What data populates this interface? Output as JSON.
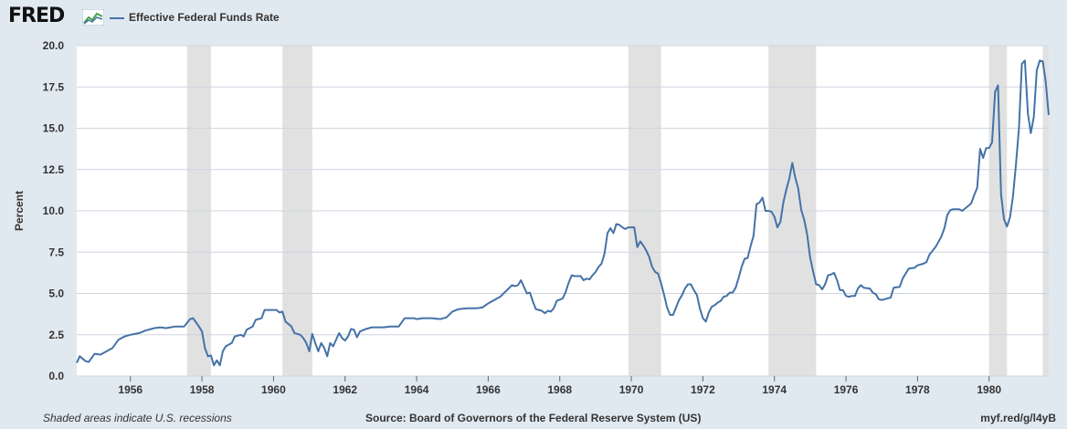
{
  "header": {
    "logo_text": "FRED",
    "logo_icon": "fred-chart-icon",
    "legend_label": "Effective Federal Funds Rate"
  },
  "colors": {
    "background": "#e1e9f0",
    "plot_background": "#ffffff",
    "series": "#4572a7",
    "recession": "#e1e1e1",
    "grid": "#ccd6e0"
  },
  "footer": {
    "note": "Shaded areas indicate U.S. recessions",
    "source": "Source: Board of Governors of the Federal Reserve System (US)",
    "link": "myf.red/g/l4yB"
  },
  "chart_data": {
    "type": "line",
    "title": "",
    "xlabel": "",
    "ylabel": "Percent",
    "xlim": [
      "1954-07",
      "1981-09"
    ],
    "ylim": [
      0,
      20
    ],
    "yticks": [
      "0.0",
      "2.5",
      "5.0",
      "7.5",
      "10.0",
      "12.5",
      "15.0",
      "17.5",
      "20.0"
    ],
    "xticks": [
      "1956",
      "1958",
      "1960",
      "1962",
      "1964",
      "1966",
      "1968",
      "1970",
      "1972",
      "1974",
      "1976",
      "1978",
      "1980"
    ],
    "grid": true,
    "legend_position": "top-left",
    "recessions": [
      [
        "1957-08",
        "1958-04"
      ],
      [
        "1960-04",
        "1961-02"
      ],
      [
        "1969-12",
        "1970-11"
      ],
      [
        "1973-11",
        "1975-03"
      ],
      [
        "1980-01",
        "1980-07"
      ],
      [
        "1981-07",
        "1981-09"
      ]
    ],
    "series": [
      {
        "name": "Effective Federal Funds Rate",
        "points": [
          [
            "1954-07",
            0.8
          ],
          [
            "1954-08",
            1.2
          ],
          [
            "1954-10",
            0.9
          ],
          [
            "1954-11",
            0.85
          ],
          [
            "1955-01",
            1.35
          ],
          [
            "1955-03",
            1.3
          ],
          [
            "1955-05",
            1.5
          ],
          [
            "1955-07",
            1.7
          ],
          [
            "1955-09",
            2.2
          ],
          [
            "1955-11",
            2.4
          ],
          [
            "1956-01",
            2.5
          ],
          [
            "1956-04",
            2.6
          ],
          [
            "1956-06",
            2.75
          ],
          [
            "1956-09",
            2.9
          ],
          [
            "1956-11",
            2.95
          ],
          [
            "1957-01",
            2.9
          ],
          [
            "1957-04",
            3.0
          ],
          [
            "1957-07",
            3.0
          ],
          [
            "1957-09",
            3.45
          ],
          [
            "1957-10",
            3.5
          ],
          [
            "1957-12",
            3.0
          ],
          [
            "1958-01",
            2.7
          ],
          [
            "1958-02",
            1.7
          ],
          [
            "1958-03",
            1.2
          ],
          [
            "1958-04",
            1.25
          ],
          [
            "1958-05",
            0.65
          ],
          [
            "1958-06",
            0.95
          ],
          [
            "1958-07",
            0.65
          ],
          [
            "1958-08",
            1.5
          ],
          [
            "1958-09",
            1.8
          ],
          [
            "1958-11",
            2.0
          ],
          [
            "1958-12",
            2.4
          ],
          [
            "1959-02",
            2.5
          ],
          [
            "1959-03",
            2.4
          ],
          [
            "1959-04",
            2.8
          ],
          [
            "1959-06",
            3.0
          ],
          [
            "1959-07",
            3.4
          ],
          [
            "1959-09",
            3.5
          ],
          [
            "1959-10",
            4.0
          ],
          [
            "1959-12",
            4.0
          ],
          [
            "1960-02",
            4.0
          ],
          [
            "1960-03",
            3.85
          ],
          [
            "1960-04",
            3.9
          ],
          [
            "1960-05",
            3.3
          ],
          [
            "1960-07",
            3.0
          ],
          [
            "1960-08",
            2.6
          ],
          [
            "1960-10",
            2.5
          ],
          [
            "1960-11",
            2.3
          ],
          [
            "1960-12",
            2.0
          ],
          [
            "1961-01",
            1.5
          ],
          [
            "1961-02",
            2.55
          ],
          [
            "1961-03",
            2.0
          ],
          [
            "1961-04",
            1.5
          ],
          [
            "1961-05",
            2.0
          ],
          [
            "1961-06",
            1.7
          ],
          [
            "1961-07",
            1.2
          ],
          [
            "1961-08",
            2.0
          ],
          [
            "1961-09",
            1.8
          ],
          [
            "1961-11",
            2.6
          ],
          [
            "1961-12",
            2.3
          ],
          [
            "1962-01",
            2.15
          ],
          [
            "1962-02",
            2.4
          ],
          [
            "1962-03",
            2.85
          ],
          [
            "1962-04",
            2.8
          ],
          [
            "1962-05",
            2.35
          ],
          [
            "1962-06",
            2.7
          ],
          [
            "1962-08",
            2.85
          ],
          [
            "1962-10",
            2.95
          ],
          [
            "1963-02",
            2.95
          ],
          [
            "1963-04",
            3.0
          ],
          [
            "1963-06",
            3.0
          ],
          [
            "1963-07",
            3.0
          ],
          [
            "1963-09",
            3.5
          ],
          [
            "1963-12",
            3.5
          ],
          [
            "1964-01",
            3.45
          ],
          [
            "1964-03",
            3.5
          ],
          [
            "1964-06",
            3.5
          ],
          [
            "1964-09",
            3.45
          ],
          [
            "1964-11",
            3.55
          ],
          [
            "1965-01",
            3.9
          ],
          [
            "1965-03",
            4.05
          ],
          [
            "1965-06",
            4.1
          ],
          [
            "1965-09",
            4.1
          ],
          [
            "1965-11",
            4.15
          ],
          [
            "1966-01",
            4.4
          ],
          [
            "1966-03",
            4.6
          ],
          [
            "1966-05",
            4.8
          ],
          [
            "1966-07",
            5.15
          ],
          [
            "1966-09",
            5.5
          ],
          [
            "1966-10",
            5.45
          ],
          [
            "1966-11",
            5.5
          ],
          [
            "1966-12",
            5.8
          ],
          [
            "1967-02",
            5.0
          ],
          [
            "1967-03",
            5.05
          ],
          [
            "1967-04",
            4.5
          ],
          [
            "1967-05",
            4.05
          ],
          [
            "1967-06",
            4.0
          ],
          [
            "1967-07",
            3.95
          ],
          [
            "1967-08",
            3.8
          ],
          [
            "1967-09",
            3.95
          ],
          [
            "1967-10",
            3.9
          ],
          [
            "1967-11",
            4.1
          ],
          [
            "1967-12",
            4.55
          ],
          [
            "1968-02",
            4.7
          ],
          [
            "1968-03",
            5.1
          ],
          [
            "1968-04",
            5.65
          ],
          [
            "1968-05",
            6.1
          ],
          [
            "1968-06",
            6.05
          ],
          [
            "1968-08",
            6.05
          ],
          [
            "1968-09",
            5.8
          ],
          [
            "1968-10",
            5.9
          ],
          [
            "1968-11",
            5.85
          ],
          [
            "1968-12",
            6.1
          ],
          [
            "1969-01",
            6.3
          ],
          [
            "1969-02",
            6.6
          ],
          [
            "1969-03",
            6.8
          ],
          [
            "1969-04",
            7.4
          ],
          [
            "1969-05",
            8.65
          ],
          [
            "1969-06",
            8.95
          ],
          [
            "1969-07",
            8.65
          ],
          [
            "1969-08",
            9.2
          ],
          [
            "1969-09",
            9.15
          ],
          [
            "1969-10",
            9.0
          ],
          [
            "1969-11",
            8.9
          ],
          [
            "1969-12",
            9.0
          ],
          [
            "1970-02",
            9.0
          ],
          [
            "1970-03",
            7.8
          ],
          [
            "1970-04",
            8.15
          ],
          [
            "1970-05",
            7.9
          ],
          [
            "1970-06",
            7.6
          ],
          [
            "1970-07",
            7.2
          ],
          [
            "1970-08",
            6.6
          ],
          [
            "1970-09",
            6.3
          ],
          [
            "1970-10",
            6.2
          ],
          [
            "1970-11",
            5.6
          ],
          [
            "1970-12",
            4.9
          ],
          [
            "1971-01",
            4.15
          ],
          [
            "1971-02",
            3.7
          ],
          [
            "1971-03",
            3.7
          ],
          [
            "1971-04",
            4.15
          ],
          [
            "1971-05",
            4.6
          ],
          [
            "1971-06",
            4.9
          ],
          [
            "1971-07",
            5.3
          ],
          [
            "1971-08",
            5.55
          ],
          [
            "1971-09",
            5.55
          ],
          [
            "1971-10",
            5.2
          ],
          [
            "1971-11",
            4.9
          ],
          [
            "1971-12",
            4.1
          ],
          [
            "1972-01",
            3.5
          ],
          [
            "1972-02",
            3.3
          ],
          [
            "1972-03",
            3.85
          ],
          [
            "1972-04",
            4.2
          ],
          [
            "1972-05",
            4.3
          ],
          [
            "1972-06",
            4.45
          ],
          [
            "1972-07",
            4.55
          ],
          [
            "1972-08",
            4.8
          ],
          [
            "1972-09",
            4.85
          ],
          [
            "1972-10",
            5.05
          ],
          [
            "1972-11",
            5.05
          ],
          [
            "1972-12",
            5.35
          ],
          [
            "1973-01",
            5.95
          ],
          [
            "1973-02",
            6.6
          ],
          [
            "1973-03",
            7.1
          ],
          [
            "1973-04",
            7.15
          ],
          [
            "1973-05",
            7.85
          ],
          [
            "1973-06",
            8.5
          ],
          [
            "1973-07",
            10.4
          ],
          [
            "1973-08",
            10.5
          ],
          [
            "1973-09",
            10.8
          ],
          [
            "1973-10",
            10.0
          ],
          [
            "1973-11",
            10.0
          ],
          [
            "1973-12",
            9.95
          ],
          [
            "1974-01",
            9.65
          ],
          [
            "1974-02",
            9.0
          ],
          [
            "1974-03",
            9.35
          ],
          [
            "1974-04",
            10.5
          ],
          [
            "1974-05",
            11.3
          ],
          [
            "1974-06",
            11.95
          ],
          [
            "1974-07",
            12.9
          ],
          [
            "1974-08",
            12.0
          ],
          [
            "1974-09",
            11.35
          ],
          [
            "1974-10",
            10.05
          ],
          [
            "1974-11",
            9.45
          ],
          [
            "1974-12",
            8.55
          ],
          [
            "1975-01",
            7.15
          ],
          [
            "1975-02",
            6.3
          ],
          [
            "1975-03",
            5.55
          ],
          [
            "1975-04",
            5.5
          ],
          [
            "1975-05",
            5.25
          ],
          [
            "1975-06",
            5.55
          ],
          [
            "1975-07",
            6.1
          ],
          [
            "1975-08",
            6.15
          ],
          [
            "1975-09",
            6.25
          ],
          [
            "1975-10",
            5.8
          ],
          [
            "1975-11",
            5.2
          ],
          [
            "1975-12",
            5.2
          ],
          [
            "1976-01",
            4.85
          ],
          [
            "1976-02",
            4.8
          ],
          [
            "1976-03",
            4.85
          ],
          [
            "1976-04",
            4.85
          ],
          [
            "1976-05",
            5.3
          ],
          [
            "1976-06",
            5.5
          ],
          [
            "1976-07",
            5.35
          ],
          [
            "1976-09",
            5.3
          ],
          [
            "1976-10",
            5.05
          ],
          [
            "1976-11",
            4.95
          ],
          [
            "1976-12",
            4.65
          ],
          [
            "1977-01",
            4.6
          ],
          [
            "1977-04",
            4.75
          ],
          [
            "1977-05",
            5.35
          ],
          [
            "1977-07",
            5.4
          ],
          [
            "1977-08",
            5.9
          ],
          [
            "1977-10",
            6.5
          ],
          [
            "1977-12",
            6.55
          ],
          [
            "1978-01",
            6.7
          ],
          [
            "1978-03",
            6.8
          ],
          [
            "1978-04",
            6.9
          ],
          [
            "1978-05",
            7.35
          ],
          [
            "1978-07",
            7.8
          ],
          [
            "1978-09",
            8.45
          ],
          [
            "1978-10",
            8.95
          ],
          [
            "1978-11",
            9.75
          ],
          [
            "1978-12",
            10.05
          ],
          [
            "1979-01",
            10.1
          ],
          [
            "1979-03",
            10.1
          ],
          [
            "1979-04",
            10.0
          ],
          [
            "1979-06",
            10.3
          ],
          [
            "1979-07",
            10.45
          ],
          [
            "1979-08",
            10.95
          ],
          [
            "1979-09",
            11.4
          ],
          [
            "1979-10",
            13.75
          ],
          [
            "1979-11",
            13.2
          ],
          [
            "1979-12",
            13.8
          ],
          [
            "1980-01",
            13.8
          ],
          [
            "1980-02",
            14.15
          ],
          [
            "1980-03",
            17.2
          ],
          [
            "1980-04",
            17.6
          ],
          [
            "1980-05",
            11.0
          ],
          [
            "1980-06",
            9.5
          ],
          [
            "1980-07",
            9.05
          ],
          [
            "1980-08",
            9.6
          ],
          [
            "1980-09",
            10.85
          ],
          [
            "1980-10",
            12.8
          ],
          [
            "1980-11",
            15.0
          ],
          [
            "1980-12",
            18.9
          ],
          [
            "1981-01",
            19.1
          ],
          [
            "1981-02",
            15.9
          ],
          [
            "1981-03",
            14.7
          ],
          [
            "1981-04",
            15.7
          ],
          [
            "1981-05",
            18.5
          ],
          [
            "1981-06",
            19.1
          ],
          [
            "1981-07",
            19.05
          ],
          [
            "1981-08",
            17.8
          ],
          [
            "1981-09",
            15.8
          ]
        ]
      }
    ]
  }
}
